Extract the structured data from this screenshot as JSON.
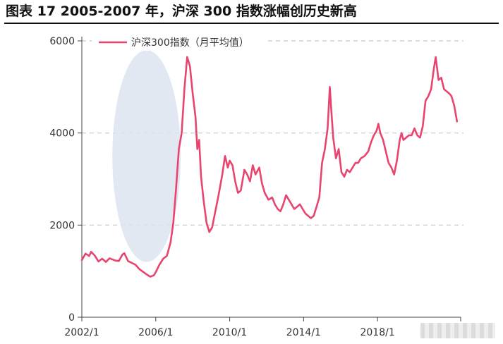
{
  "figure_title": "图表 17 2005-2007 年，沪深 300 指数涨幅创历史新高",
  "chart_data": {
    "type": "line",
    "legend_position": "top-left",
    "grid": "horizontal-dashed",
    "ylim": [
      0,
      6000
    ],
    "xlim": [
      2002.0,
      2022.5
    ],
    "y_ticks": [
      0,
      2000,
      4000,
      6000
    ],
    "y_tick_labels": [
      "0",
      "2000",
      "4000",
      "6000"
    ],
    "x_ticks": [
      2002.0,
      2006.0,
      2010.0,
      2014.0,
      2018.0
    ],
    "x_tick_labels": [
      "2002/1",
      "2006/1",
      "2010/1",
      "2014/1",
      "2018/1"
    ],
    "highlight_region": {
      "x_center": 2005.5,
      "y_center": 3500,
      "x_half_width": 1.85,
      "y_half_height": 2300,
      "color": "#dde4ef"
    },
    "series": [
      {
        "name": "沪深300指数（月平均值）",
        "color": "#e8456e",
        "points": [
          [
            2002.0,
            1240
          ],
          [
            2002.2,
            1380
          ],
          [
            2002.4,
            1330
          ],
          [
            2002.5,
            1420
          ],
          [
            2002.7,
            1340
          ],
          [
            2002.9,
            1210
          ],
          [
            2003.1,
            1270
          ],
          [
            2003.3,
            1200
          ],
          [
            2003.5,
            1280
          ],
          [
            2003.8,
            1230
          ],
          [
            2004.0,
            1220
          ],
          [
            2004.2,
            1360
          ],
          [
            2004.3,
            1390
          ],
          [
            2004.5,
            1220
          ],
          [
            2004.7,
            1180
          ],
          [
            2004.9,
            1140
          ],
          [
            2005.1,
            1050
          ],
          [
            2005.3,
            990
          ],
          [
            2005.5,
            930
          ],
          [
            2005.7,
            880
          ],
          [
            2005.9,
            910
          ],
          [
            2006.0,
            980
          ],
          [
            2006.2,
            1140
          ],
          [
            2006.4,
            1270
          ],
          [
            2006.6,
            1330
          ],
          [
            2006.8,
            1620
          ],
          [
            2006.95,
            2050
          ],
          [
            2007.1,
            2800
          ],
          [
            2007.25,
            3650
          ],
          [
            2007.4,
            4000
          ],
          [
            2007.55,
            4950
          ],
          [
            2007.7,
            5650
          ],
          [
            2007.85,
            5450
          ],
          [
            2008.0,
            4850
          ],
          [
            2008.15,
            4350
          ],
          [
            2008.25,
            3650
          ],
          [
            2008.35,
            3850
          ],
          [
            2008.45,
            3050
          ],
          [
            2008.6,
            2500
          ],
          [
            2008.75,
            2050
          ],
          [
            2008.9,
            1850
          ],
          [
            2009.05,
            1950
          ],
          [
            2009.2,
            2250
          ],
          [
            2009.4,
            2650
          ],
          [
            2009.6,
            3100
          ],
          [
            2009.75,
            3500
          ],
          [
            2009.9,
            3250
          ],
          [
            2010.0,
            3400
          ],
          [
            2010.15,
            3300
          ],
          [
            2010.3,
            2950
          ],
          [
            2010.45,
            2700
          ],
          [
            2010.6,
            2750
          ],
          [
            2010.8,
            3200
          ],
          [
            2010.95,
            3100
          ],
          [
            2011.1,
            2950
          ],
          [
            2011.25,
            3300
          ],
          [
            2011.4,
            3100
          ],
          [
            2011.6,
            3250
          ],
          [
            2011.75,
            2900
          ],
          [
            2011.9,
            2700
          ],
          [
            2012.1,
            2550
          ],
          [
            2012.3,
            2600
          ],
          [
            2012.45,
            2450
          ],
          [
            2012.6,
            2350
          ],
          [
            2012.75,
            2300
          ],
          [
            2012.9,
            2450
          ],
          [
            2013.05,
            2650
          ],
          [
            2013.2,
            2550
          ],
          [
            2013.35,
            2450
          ],
          [
            2013.5,
            2350
          ],
          [
            2013.65,
            2400
          ],
          [
            2013.8,
            2450
          ],
          [
            2013.95,
            2350
          ],
          [
            2014.1,
            2250
          ],
          [
            2014.25,
            2200
          ],
          [
            2014.4,
            2150
          ],
          [
            2014.55,
            2200
          ],
          [
            2014.7,
            2400
          ],
          [
            2014.85,
            2600
          ],
          [
            2015.0,
            3350
          ],
          [
            2015.15,
            3650
          ],
          [
            2015.3,
            4100
          ],
          [
            2015.42,
            5000
          ],
          [
            2015.5,
            4500
          ],
          [
            2015.6,
            3900
          ],
          [
            2015.75,
            3450
          ],
          [
            2015.9,
            3650
          ],
          [
            2016.05,
            3150
          ],
          [
            2016.2,
            3050
          ],
          [
            2016.35,
            3200
          ],
          [
            2016.5,
            3150
          ],
          [
            2016.65,
            3250
          ],
          [
            2016.8,
            3350
          ],
          [
            2016.95,
            3350
          ],
          [
            2017.1,
            3450
          ],
          [
            2017.3,
            3500
          ],
          [
            2017.5,
            3600
          ],
          [
            2017.65,
            3800
          ],
          [
            2017.8,
            3950
          ],
          [
            2017.95,
            4050
          ],
          [
            2018.05,
            4200
          ],
          [
            2018.15,
            4000
          ],
          [
            2018.3,
            3850
          ],
          [
            2018.45,
            3600
          ],
          [
            2018.6,
            3350
          ],
          [
            2018.75,
            3250
          ],
          [
            2018.9,
            3100
          ],
          [
            2019.05,
            3400
          ],
          [
            2019.2,
            3850
          ],
          [
            2019.3,
            4000
          ],
          [
            2019.4,
            3850
          ],
          [
            2019.55,
            3900
          ],
          [
            2019.7,
            3950
          ],
          [
            2019.85,
            3950
          ],
          [
            2020.0,
            4100
          ],
          [
            2020.15,
            3950
          ],
          [
            2020.3,
            3900
          ],
          [
            2020.45,
            4150
          ],
          [
            2020.6,
            4700
          ],
          [
            2020.75,
            4800
          ],
          [
            2020.9,
            4950
          ],
          [
            2021.05,
            5400
          ],
          [
            2021.15,
            5650
          ],
          [
            2021.3,
            5150
          ],
          [
            2021.45,
            5200
          ],
          [
            2021.6,
            4950
          ],
          [
            2021.75,
            4900
          ],
          [
            2021.9,
            4850
          ],
          [
            2022.0,
            4800
          ],
          [
            2022.15,
            4600
          ],
          [
            2022.3,
            4250
          ]
        ]
      }
    ]
  }
}
